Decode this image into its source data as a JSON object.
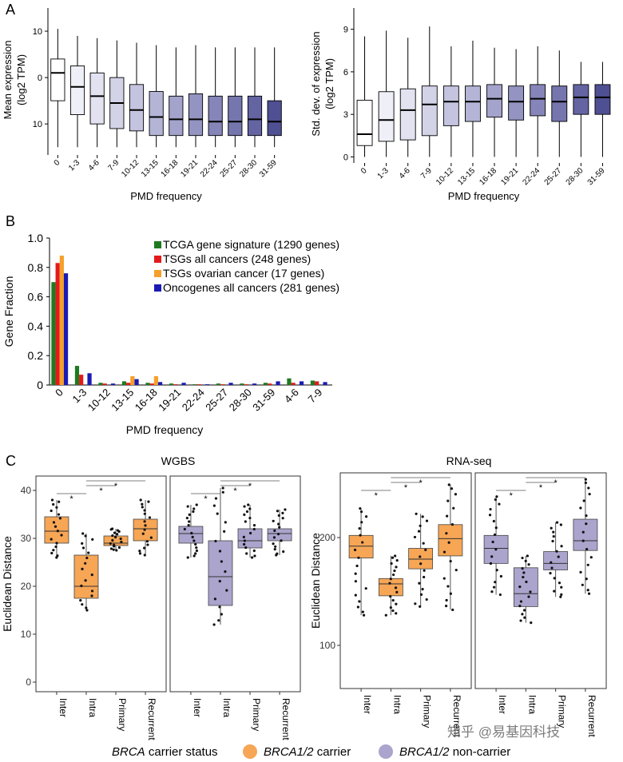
{
  "panels": {
    "a": "A",
    "b": "B",
    "c": "C"
  },
  "colors": {
    "pmd_boxes": [
      "#ffffff",
      "#efeff7",
      "#e2e2f0",
      "#d3d3e8",
      "#c4c4e0",
      "#b4b4d6",
      "#a3a3cc",
      "#9494c2",
      "#8585b9",
      "#7676ae",
      "#6464a3",
      "#4f4f93",
      "#363680"
    ],
    "green": "#1f7a1f",
    "red": "#e31a1c",
    "orange": "#f5a02a",
    "blue": "#1a1ab5",
    "carrier": "#f6a655",
    "noncarrier": "#aba4cd"
  },
  "chart_data": [
    {
      "id": "A-left",
      "type": "box",
      "xlabel": "PMD frequency",
      "ylabel": [
        "Mean expression",
        "(log2 TPM)"
      ],
      "yticks": [
        {
          "v": 10,
          "t": "10"
        },
        {
          "v": 0,
          "t": "0"
        },
        {
          "v": -10,
          "t": "10"
        }
      ],
      "ylim": [
        -16,
        15
      ],
      "categories": [
        "0",
        "1-3",
        "4-6",
        "7-9",
        "10-12",
        "13-15",
        "16-18",
        "19-21",
        "22-24",
        "25-27",
        "28-30",
        "31-59"
      ],
      "boxes": [
        {
          "lo": -15,
          "q1": -5,
          "med": 1,
          "q3": 4,
          "hi": 10.5
        },
        {
          "lo": -15,
          "q1": -8,
          "med": -2,
          "q3": 2.5,
          "hi": 9
        },
        {
          "lo": -15,
          "q1": -10,
          "med": -4,
          "q3": 1,
          "hi": 8.5
        },
        {
          "lo": -15,
          "q1": -11,
          "med": -5.5,
          "q3": 0,
          "hi": 8
        },
        {
          "lo": -15,
          "q1": -11.5,
          "med": -7,
          "q3": -1.5,
          "hi": 7.5
        },
        {
          "lo": -15,
          "q1": -12.5,
          "med": -8.5,
          "q3": -3,
          "hi": 7
        },
        {
          "lo": -15,
          "q1": -12.5,
          "med": -9,
          "q3": -4,
          "hi": 6.5
        },
        {
          "lo": -15,
          "q1": -12.5,
          "med": -9,
          "q3": -3.5,
          "hi": 7
        },
        {
          "lo": -15,
          "q1": -12.5,
          "med": -9.5,
          "q3": -4,
          "hi": 6.5
        },
        {
          "lo": -15,
          "q1": -12.5,
          "med": -9.5,
          "q3": -4,
          "hi": 6.5
        },
        {
          "lo": -15,
          "q1": -12.5,
          "med": -9,
          "q3": -4,
          "hi": 6.5
        },
        {
          "lo": -15,
          "q1": -12.5,
          "med": -9.5,
          "q3": -5,
          "hi": 6.5
        }
      ]
    },
    {
      "id": "A-right",
      "type": "box",
      "xlabel": "PMD frequency",
      "ylabel": [
        "Std. dev. of expression",
        "(log2 TPM)"
      ],
      "yticks": [
        {
          "v": 0,
          "t": "0"
        },
        {
          "v": 3,
          "t": "3"
        },
        {
          "v": 6,
          "t": "6"
        },
        {
          "v": 9,
          "t": "9"
        }
      ],
      "ylim": [
        -0.2,
        10.5
      ],
      "categories": [
        "0",
        "1-3",
        "4-6",
        "7-9",
        "10-12",
        "13-15",
        "16-18",
        "19-21",
        "22-24",
        "25-27",
        "28-30",
        "31-59"
      ],
      "boxes": [
        {
          "lo": 0,
          "q1": 0.8,
          "med": 1.6,
          "q3": 4.0,
          "hi": 8.5
        },
        {
          "lo": 0,
          "q1": 1.1,
          "med": 2.6,
          "q3": 4.6,
          "hi": 8.9
        },
        {
          "lo": 0,
          "q1": 1.2,
          "med": 3.3,
          "q3": 4.8,
          "hi": 8.4
        },
        {
          "lo": 0,
          "q1": 1.5,
          "med": 3.7,
          "q3": 5.0,
          "hi": 9.2
        },
        {
          "lo": 0,
          "q1": 2.2,
          "med": 3.9,
          "q3": 5.0,
          "hi": 7.8
        },
        {
          "lo": 0,
          "q1": 2.5,
          "med": 3.9,
          "q3": 5.0,
          "hi": 8.2
        },
        {
          "lo": 0,
          "q1": 2.8,
          "med": 4.1,
          "q3": 5.1,
          "hi": 7.7
        },
        {
          "lo": 0,
          "q1": 2.6,
          "med": 3.9,
          "q3": 5.0,
          "hi": 7.6
        },
        {
          "lo": 0,
          "q1": 2.9,
          "med": 4.1,
          "q3": 5.1,
          "hi": 7.8
        },
        {
          "lo": 0,
          "q1": 2.5,
          "med": 3.9,
          "q3": 5.0,
          "hi": 7.5
        },
        {
          "lo": 0,
          "q1": 3.0,
          "med": 4.2,
          "q3": 5.1,
          "hi": 6.7
        },
        {
          "lo": 0,
          "q1": 3.0,
          "med": 4.2,
          "q3": 5.1,
          "hi": 6.7
        }
      ]
    },
    {
      "id": "B",
      "type": "bar",
      "xlabel": "PMD frequency",
      "ylabel": "Gene Fraction",
      "ylim": [
        0,
        1.0
      ],
      "yticks": [
        0,
        0.2,
        0.4,
        0.6,
        0.8,
        1.0
      ],
      "ytick_labels": [
        "0",
        "0.2",
        "0.4",
        "0.6",
        "0.8",
        "1.0"
      ],
      "categories": [
        "0",
        "1-3",
        "10-12",
        "13-15",
        "16-18",
        "19-21",
        "22-24",
        "25-27",
        "28-30",
        "31-59",
        "4-6",
        "7-9"
      ],
      "legend_position": "top-right",
      "series": [
        {
          "name": "TCGA gene signature (1290 genes)",
          "color_key": "green",
          "values": [
            0.7,
            0.13,
            0.015,
            0.025,
            0.015,
            0.01,
            0.005,
            0.01,
            0.01,
            0.015,
            0.045,
            0.03
          ]
        },
        {
          "name": "TSGs all cancers (248 genes)",
          "color_key": "red",
          "values": [
            0.83,
            0.07,
            0.01,
            0.015,
            0.01,
            0.005,
            0.005,
            0.005,
            0.005,
            0.01,
            0.015,
            0.025
          ]
        },
        {
          "name": "TSGs ovarian cancer (17 genes)",
          "color_key": "orange",
          "values": [
            0.88,
            0.0,
            0.0,
            0.06,
            0.06,
            0.0,
            0.0,
            0.0,
            0.0,
            0.0,
            0.0,
            0.0
          ]
        },
        {
          "name": "Oncogenes all cancers (281 genes)",
          "color_key": "blue",
          "values": [
            0.76,
            0.08,
            0.01,
            0.04,
            0.02,
            0.015,
            0.005,
            0.015,
            0.01,
            0.025,
            0.025,
            0.02
          ]
        }
      ]
    },
    {
      "id": "C-WGBS",
      "type": "box",
      "title": "WGBS",
      "ylabel": "Euclidean Distance",
      "ylim": [
        -2,
        43
      ],
      "yticks": [
        0,
        10,
        20,
        30,
        40
      ],
      "categories": [
        "Inter",
        "Intra",
        "Primary",
        "Recurrent"
      ],
      "groups": [
        {
          "name": "BRCA1/2 carrier",
          "color_key": "carrier",
          "boxes": [
            {
              "lo": 26,
              "q1": 29,
              "med": 31.5,
              "q3": 34.5,
              "hi": 38
            },
            {
              "lo": 15,
              "q1": 17.5,
              "med": 20,
              "q3": 26.5,
              "hi": 31
            },
            {
              "lo": 27.5,
              "q1": 28.5,
              "med": 29,
              "q3": 30.5,
              "hi": 32
            },
            {
              "lo": 26.5,
              "q1": 29.5,
              "med": 32,
              "q3": 34,
              "hi": 38
            }
          ]
        },
        {
          "name": "BRCA1/2 non-carrier",
          "color_key": "noncarrier",
          "boxes": [
            {
              "lo": 26,
              "q1": 29,
              "med": 31,
              "q3": 32.5,
              "hi": 37
            },
            {
              "lo": 12,
              "q1": 16,
              "med": 22,
              "q3": 29.5,
              "hi": 40.5
            },
            {
              "lo": 26,
              "q1": 28,
              "med": 29.5,
              "q3": 32,
              "hi": 37
            },
            {
              "lo": 26.5,
              "q1": 29.5,
              "med": 31,
              "q3": 32,
              "hi": 36
            }
          ]
        }
      ]
    },
    {
      "id": "C-RNAseq",
      "type": "box",
      "title": "RNA-seq",
      "ylabel": "Euclidean Distance",
      "ylim": [
        60,
        260
      ],
      "yticks": [
        100,
        200
      ],
      "categories": [
        "Inter",
        "Intra",
        "Primary",
        "Recurrent"
      ],
      "groups": [
        {
          "name": "BRCA1/2 carrier",
          "color_key": "carrier",
          "boxes": [
            {
              "lo": 128,
              "q1": 181,
              "med": 192,
              "q3": 202,
              "hi": 227
            },
            {
              "lo": 128,
              "q1": 146,
              "med": 157,
              "q3": 162,
              "hi": 183
            },
            {
              "lo": 136,
              "q1": 171,
              "med": 180,
              "q3": 190,
              "hi": 222
            },
            {
              "lo": 133,
              "q1": 183,
              "med": 199,
              "q3": 212,
              "hi": 249
            }
          ]
        },
        {
          "name": "BRCA1/2 non-carrier",
          "color_key": "noncarrier",
          "boxes": [
            {
              "lo": 147,
              "q1": 176,
              "med": 190,
              "q3": 202,
              "hi": 238
            },
            {
              "lo": 121,
              "q1": 136,
              "med": 148,
              "q3": 172,
              "hi": 183
            },
            {
              "lo": 145,
              "q1": 170,
              "med": 176,
              "q3": 187,
              "hi": 214
            },
            {
              "lo": 148,
              "q1": 188,
              "med": 197,
              "q3": 217,
              "hi": 254
            }
          ]
        }
      ]
    }
  ],
  "significance_mark": "*",
  "legend": {
    "title_italic": "BRCA",
    "title_rest": " carrier status",
    "carrier_italic": "BRCA1/2",
    "carrier_rest": " carrier",
    "noncarrier_italic": "BRCA1/2",
    "noncarrier_rest": " non-carrier"
  },
  "watermark": "知乎 @易基因科技"
}
